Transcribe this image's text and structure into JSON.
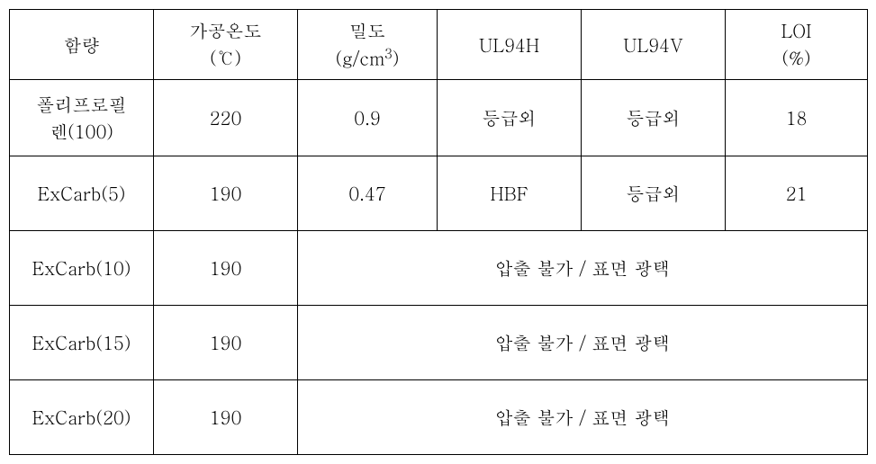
{
  "table": {
    "font_size": 20,
    "border_color": "#000000",
    "background_color": "#ffffff",
    "text_color": "#000000",
    "headers": {
      "col1": "함량",
      "col2_line1": "가공온도",
      "col2_line2": "(℃)",
      "col3_line1": "밀도",
      "col3_line2_pre": "(g/cm",
      "col3_line2_sup": "3",
      "col3_line2_post": ")",
      "col4": "UL94H",
      "col5": "UL94V",
      "col6_line1": "LOI",
      "col6_line2": "(%)"
    },
    "rows": [
      {
        "name_line1": "폴리프로필",
        "name_line2": "렌(100)",
        "temp": "220",
        "density": "0.9",
        "ul94h": "등급외",
        "ul94v": "등급외",
        "loi": "18",
        "merged": false
      },
      {
        "name": "ExCarb(5)",
        "temp": "190",
        "density": "0.47",
        "ul94h": "HBF",
        "ul94v": "등급외",
        "loi": "21",
        "merged": false
      },
      {
        "name": "ExCarb(10)",
        "temp": "190",
        "merged_text": "압출 불가 / 표면 광택",
        "merged": true
      },
      {
        "name": "ExCarb(15)",
        "temp": "190",
        "merged_text": "압출 불가 / 표면 광택",
        "merged": true
      },
      {
        "name": "ExCarb(20)",
        "temp": "190",
        "merged_text": "압출 불가 / 표면 광택",
        "merged": true
      }
    ]
  }
}
